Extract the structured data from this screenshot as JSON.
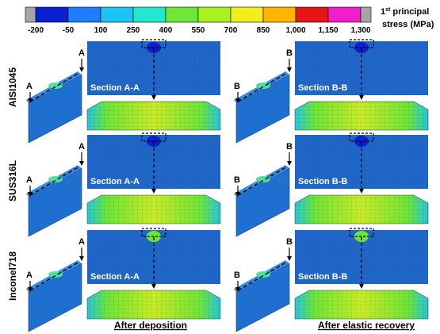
{
  "colorbar": {
    "colors": [
      "#a6a6a6",
      "#0c1ed2",
      "#1e7cff",
      "#1cc4f2",
      "#22e6d0",
      "#6ee636",
      "#a8f01e",
      "#f2ee1e",
      "#ffb400",
      "#e41616",
      "#f01ec8",
      "#a6a6a6"
    ],
    "labels": [
      "-200",
      "-50",
      "100",
      "250",
      "400",
      "550",
      "700",
      "850",
      "1,000",
      "1,150",
      "1,300"
    ],
    "title_base": "1",
    "title_sup": "st",
    "title_rest": " principal",
    "title_line2": "stress (MPa)"
  },
  "rows": [
    "AISI1045",
    "SUS316L",
    "Inconel718"
  ],
  "columns": [
    {
      "caption": "After deposition",
      "marker": "A",
      "section": "Section A-A"
    },
    {
      "caption": "After elastic recovery",
      "marker": "B",
      "section": "Section B-B"
    }
  ]
}
